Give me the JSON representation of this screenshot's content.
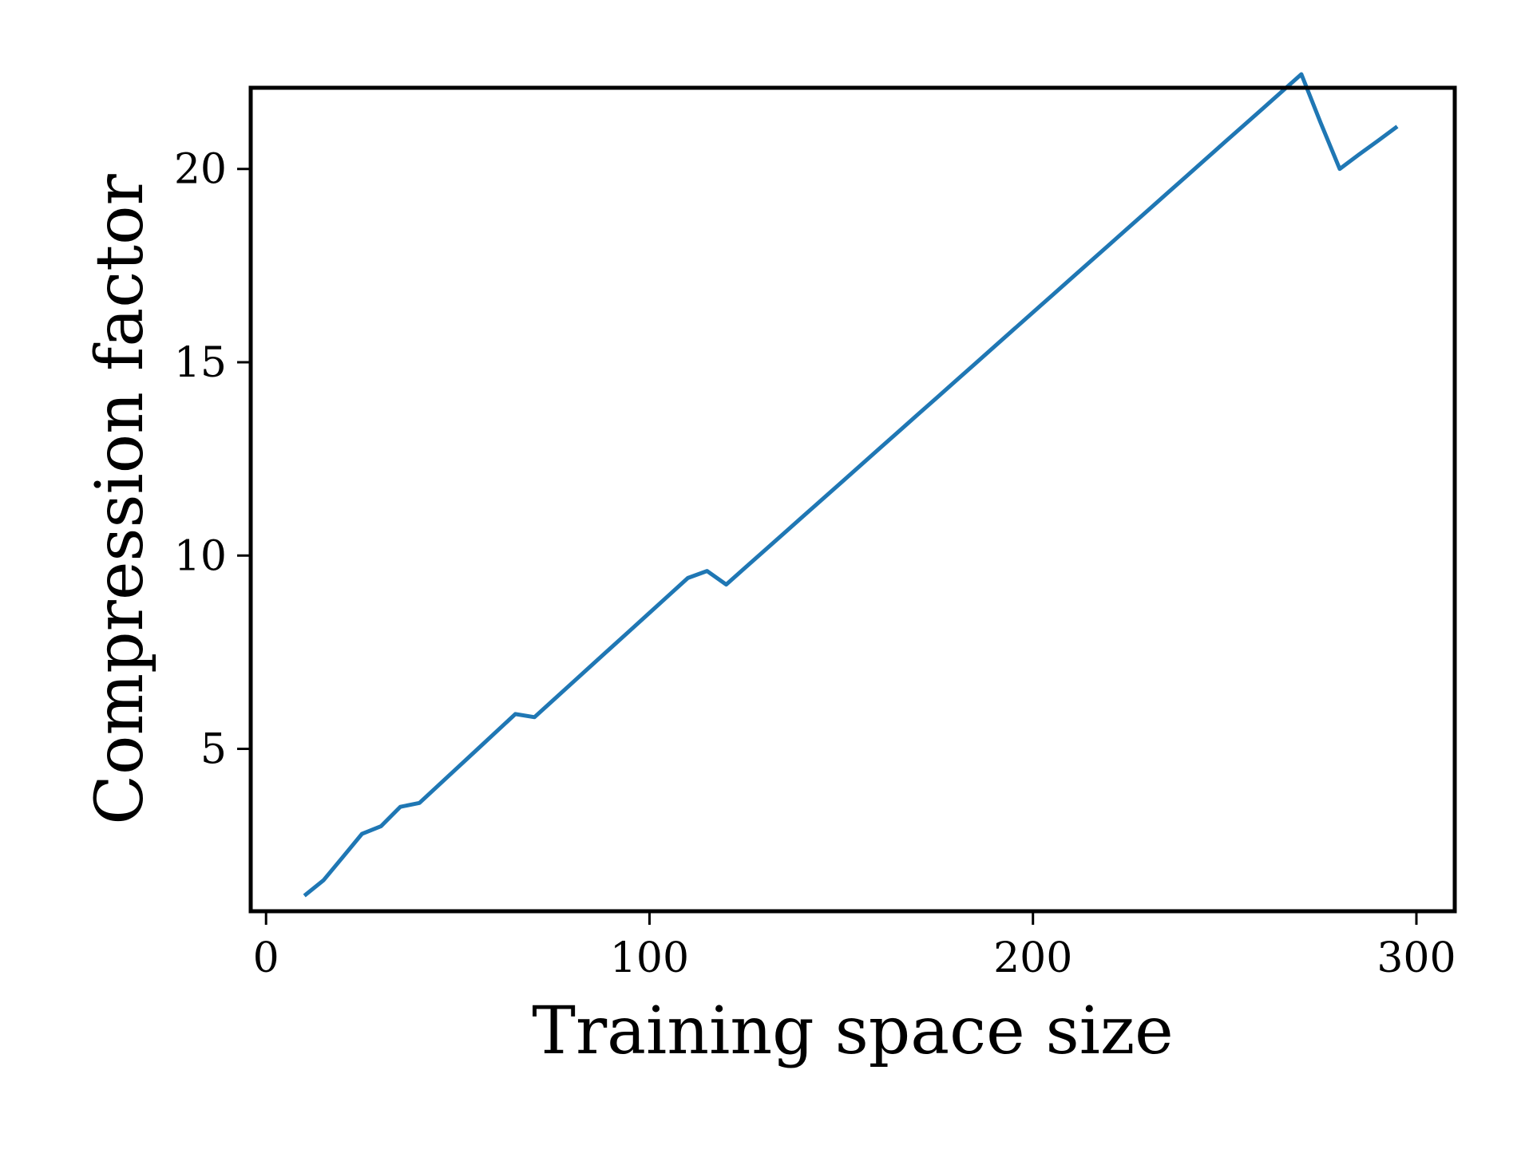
{
  "chart_data": {
    "type": "line",
    "xlabel": "Training space size",
    "ylabel": "Compression factor",
    "xlim": [
      -4,
      310
    ],
    "ylim": [
      0.8,
      22.1
    ],
    "x_ticks": [
      0,
      100,
      200,
      300
    ],
    "y_ticks": [
      5,
      10,
      15,
      20
    ],
    "grid": false,
    "line_color": "#1f77b4",
    "series": [
      {
        "x": [
          10,
          15,
          20,
          25,
          30,
          35,
          40,
          45,
          50,
          55,
          60,
          65,
          70,
          75,
          80,
          85,
          90,
          95,
          100,
          105,
          110,
          115,
          120,
          125,
          130,
          135,
          140,
          145,
          150,
          155,
          160,
          165,
          170,
          175,
          180,
          185,
          190,
          195,
          200,
          205,
          210,
          215,
          220,
          225,
          230,
          235,
          240,
          245,
          250,
          255,
          260,
          265,
          270,
          275,
          280,
          285,
          290,
          295
        ],
        "y": [
          1.2,
          1.6,
          2.2,
          2.8,
          3.0,
          3.5,
          3.6,
          4.06,
          4.52,
          4.98,
          5.44,
          5.9,
          5.82,
          6.27,
          6.72,
          7.17,
          7.62,
          8.07,
          8.52,
          8.97,
          9.42,
          9.6,
          9.25,
          9.69,
          10.13,
          10.57,
          11.01,
          11.45,
          11.89,
          12.33,
          12.77,
          13.21,
          13.65,
          14.09,
          14.53,
          14.97,
          15.41,
          15.85,
          16.29,
          16.73,
          17.17,
          17.61,
          18.05,
          18.49,
          18.93,
          19.37,
          19.81,
          20.25,
          20.69,
          21.13,
          21.57,
          22.01,
          22.45,
          21.2,
          20.0,
          20.37,
          20.73,
          21.1
        ]
      }
    ]
  }
}
